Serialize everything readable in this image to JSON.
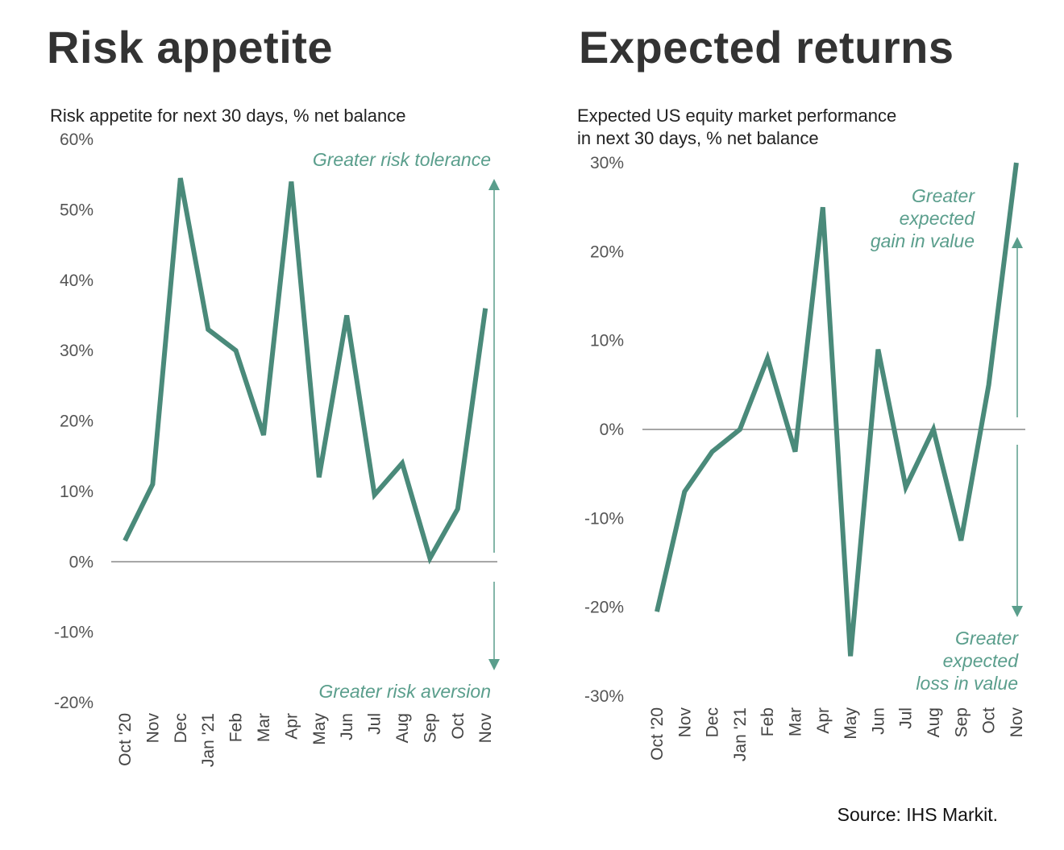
{
  "source": "Source: IHS Markit.",
  "colors": {
    "line": "#4a8a7a",
    "axis": "#888888",
    "annotation": "#5a9e8c"
  },
  "chart_data": [
    {
      "type": "line",
      "panel_title": "Risk appetite",
      "title": "Risk appetite for next 30 days, % net balance",
      "title_lines": [
        "Risk appetite for next 30 days, % net balance"
      ],
      "categories": [
        "Oct '20",
        "Nov",
        "Dec",
        "Jan '21",
        "Feb",
        "Mar",
        "Apr",
        "May",
        "Jun",
        "Jul",
        "Aug",
        "Sep",
        "Oct",
        "Nov"
      ],
      "values": [
        3,
        11,
        54.5,
        33,
        30,
        18,
        54,
        12,
        35,
        9.5,
        14,
        0.5,
        7.5,
        36
      ],
      "ylim": [
        -20,
        60
      ],
      "yticks": [
        60,
        50,
        40,
        30,
        20,
        10,
        0,
        -10,
        -20
      ],
      "ytick_labels": [
        "60%",
        "50%",
        "40%",
        "30%",
        "20%",
        "10%",
        "0%",
        "-10%",
        "-20%"
      ],
      "annotations": {
        "top": [
          "Greater risk tolerance"
        ],
        "bottom": [
          "Greater risk aversion"
        ]
      }
    },
    {
      "type": "line",
      "panel_title": "Expected returns",
      "title": "Expected US equity market performance in next 30 days, % net balance",
      "title_lines": [
        "Expected US equity market performance",
        "in next 30 days, % net balance"
      ],
      "categories": [
        "Oct '20",
        "Nov",
        "Dec",
        "Jan '21",
        "Feb",
        "Mar",
        "Apr",
        "May",
        "Jun",
        "Jul",
        "Aug",
        "Sep",
        "Oct",
        "Nov"
      ],
      "values": [
        -20.5,
        -7,
        -2.5,
        0,
        8,
        -2.5,
        25,
        -25.5,
        9,
        -6.5,
        0,
        -12.5,
        5,
        30
      ],
      "ylim": [
        -30,
        30
      ],
      "yticks": [
        30,
        20,
        10,
        0,
        -10,
        -20,
        -30
      ],
      "ytick_labels": [
        "30%",
        "20%",
        "10%",
        "0%",
        "-10%",
        "-20%",
        "-30%"
      ],
      "annotations": {
        "top": [
          "Greater",
          "expected",
          "gain in value"
        ],
        "bottom": [
          "Greater",
          "expected",
          "loss in value"
        ]
      }
    }
  ]
}
